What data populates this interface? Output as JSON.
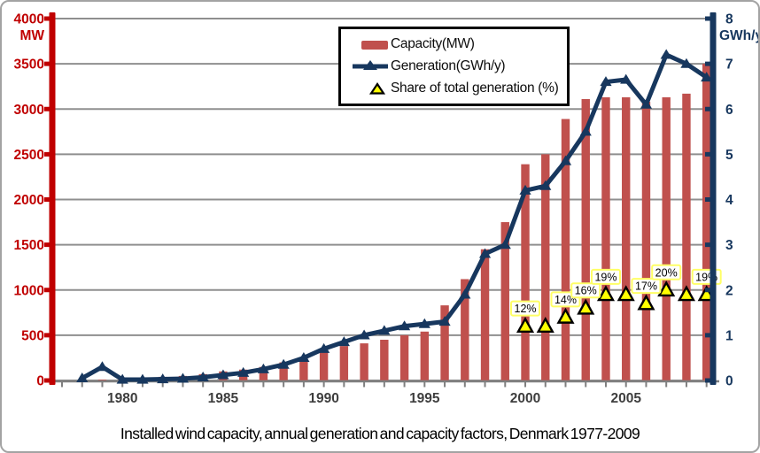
{
  "colors": {
    "bar": "#C0504D",
    "line": "#17375E",
    "left_axis": "#C00000",
    "grid": "#8F8F8F",
    "x_axis": "#7F7F7F",
    "x_label": "#3E3E3E",
    "share_fill": "#FFFF00",
    "share_border": "#000000",
    "share_label_border": "#FFFF66",
    "share_label_bg": "#FFFFFF"
  },
  "chart_data": {
    "type": "combo: bar + line + scatter",
    "title": "Installed wind capacity, annual generation and capacity factors, Denmark 1977-2009",
    "years": [
      1977,
      1978,
      1979,
      1980,
      1981,
      1982,
      1983,
      1984,
      1985,
      1986,
      1987,
      1988,
      1989,
      1990,
      1991,
      1992,
      1993,
      1994,
      1995,
      1996,
      1997,
      1998,
      1999,
      2000,
      2001,
      2002,
      2003,
      2004,
      2005,
      2006,
      2007,
      2008,
      2009
    ],
    "series": [
      {
        "name": "Capacity(MW)",
        "type": "bar",
        "axis": "left",
        "values": [
          0,
          5,
          10,
          20,
          30,
          40,
          50,
          70,
          100,
          120,
          150,
          200,
          250,
          340,
          380,
          410,
          450,
          500,
          540,
          830,
          1120,
          1450,
          1750,
          2390,
          2500,
          2890,
          3110,
          3130,
          3130,
          3080,
          3130,
          3170,
          3500
        ]
      },
      {
        "name": "Generation(GWh/y)",
        "type": "line",
        "axis": "right",
        "values": [
          null,
          0.05,
          0.3,
          0.02,
          0.02,
          0.03,
          0.04,
          0.07,
          0.12,
          0.17,
          0.25,
          0.35,
          0.5,
          0.7,
          0.85,
          1.0,
          1.1,
          1.2,
          1.25,
          1.3,
          1.9,
          2.8,
          3.0,
          4.2,
          4.3,
          4.85,
          5.5,
          6.6,
          6.65,
          6.1,
          7.2,
          7.0,
          6.7
        ]
      },
      {
        "name": "Share of total generation (%)",
        "type": "scatter",
        "axis": "right",
        "note": "plotted as pct/10 against right axis",
        "points": [
          {
            "year": 2000,
            "pct": 12,
            "label": "12%"
          },
          {
            "year": 2001,
            "pct": 12,
            "label": null
          },
          {
            "year": 2002,
            "pct": 14,
            "label": "14%"
          },
          {
            "year": 2003,
            "pct": 16,
            "label": "16%"
          },
          {
            "year": 2004,
            "pct": 19,
            "label": "19%"
          },
          {
            "year": 2005,
            "pct": 19,
            "label": null
          },
          {
            "year": 2006,
            "pct": 17,
            "label": "17%"
          },
          {
            "year": 2007,
            "pct": 20,
            "label": "20%"
          },
          {
            "year": 2008,
            "pct": 19,
            "label": null
          },
          {
            "year": 2009,
            "pct": 19,
            "label": "19%"
          }
        ]
      }
    ],
    "left_axis": {
      "unit": "MW",
      "min": 0,
      "max": 4000,
      "tick_labels": [
        "4000",
        "3500",
        "3000",
        "2500",
        "2000",
        "1500",
        "1000",
        "500",
        "0"
      ]
    },
    "right_axis": {
      "unit": "GWh/y",
      "min": 0,
      "max": 8,
      "tick_labels": [
        "8",
        "7",
        "6",
        "5",
        "4",
        "3",
        "2",
        "1",
        "0"
      ]
    },
    "x_axis": {
      "tick_labels": [
        "1980",
        "1985",
        "1990",
        "1995",
        "2000",
        "2005"
      ]
    },
    "grid": true,
    "legend_position": "top-center"
  }
}
